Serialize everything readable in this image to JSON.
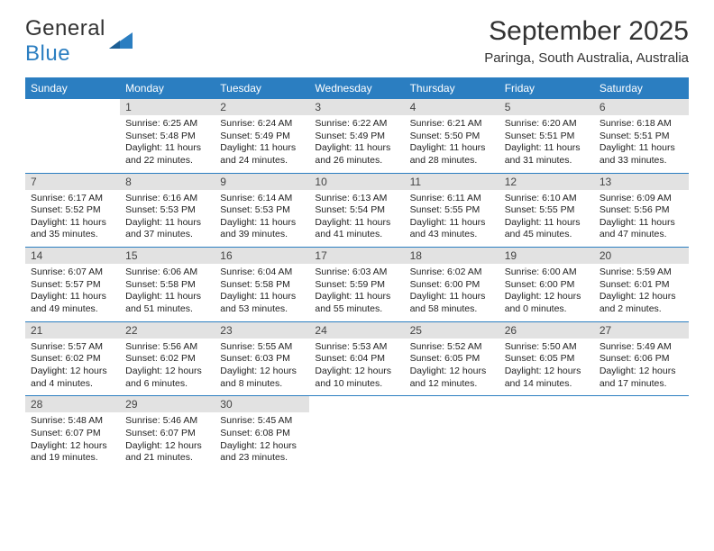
{
  "logo": {
    "word1": "General",
    "word2": "Blue"
  },
  "title": "September 2025",
  "subtitle": "Paringa, South Australia, Australia",
  "colors": {
    "brand_blue": "#2b7ec1",
    "band_gray": "#e2e2e2",
    "text": "#222222",
    "title_text": "#333333"
  },
  "day_names": [
    "Sunday",
    "Monday",
    "Tuesday",
    "Wednesday",
    "Thursday",
    "Friday",
    "Saturday"
  ],
  "weeks": [
    [
      null,
      {
        "n": "1",
        "sr": "Sunrise: 6:25 AM",
        "ss": "Sunset: 5:48 PM",
        "dl1": "Daylight: 11 hours",
        "dl2": "and 22 minutes."
      },
      {
        "n": "2",
        "sr": "Sunrise: 6:24 AM",
        "ss": "Sunset: 5:49 PM",
        "dl1": "Daylight: 11 hours",
        "dl2": "and 24 minutes."
      },
      {
        "n": "3",
        "sr": "Sunrise: 6:22 AM",
        "ss": "Sunset: 5:49 PM",
        "dl1": "Daylight: 11 hours",
        "dl2": "and 26 minutes."
      },
      {
        "n": "4",
        "sr": "Sunrise: 6:21 AM",
        "ss": "Sunset: 5:50 PM",
        "dl1": "Daylight: 11 hours",
        "dl2": "and 28 minutes."
      },
      {
        "n": "5",
        "sr": "Sunrise: 6:20 AM",
        "ss": "Sunset: 5:51 PM",
        "dl1": "Daylight: 11 hours",
        "dl2": "and 31 minutes."
      },
      {
        "n": "6",
        "sr": "Sunrise: 6:18 AM",
        "ss": "Sunset: 5:51 PM",
        "dl1": "Daylight: 11 hours",
        "dl2": "and 33 minutes."
      }
    ],
    [
      {
        "n": "7",
        "sr": "Sunrise: 6:17 AM",
        "ss": "Sunset: 5:52 PM",
        "dl1": "Daylight: 11 hours",
        "dl2": "and 35 minutes."
      },
      {
        "n": "8",
        "sr": "Sunrise: 6:16 AM",
        "ss": "Sunset: 5:53 PM",
        "dl1": "Daylight: 11 hours",
        "dl2": "and 37 minutes."
      },
      {
        "n": "9",
        "sr": "Sunrise: 6:14 AM",
        "ss": "Sunset: 5:53 PM",
        "dl1": "Daylight: 11 hours",
        "dl2": "and 39 minutes."
      },
      {
        "n": "10",
        "sr": "Sunrise: 6:13 AM",
        "ss": "Sunset: 5:54 PM",
        "dl1": "Daylight: 11 hours",
        "dl2": "and 41 minutes."
      },
      {
        "n": "11",
        "sr": "Sunrise: 6:11 AM",
        "ss": "Sunset: 5:55 PM",
        "dl1": "Daylight: 11 hours",
        "dl2": "and 43 minutes."
      },
      {
        "n": "12",
        "sr": "Sunrise: 6:10 AM",
        "ss": "Sunset: 5:55 PM",
        "dl1": "Daylight: 11 hours",
        "dl2": "and 45 minutes."
      },
      {
        "n": "13",
        "sr": "Sunrise: 6:09 AM",
        "ss": "Sunset: 5:56 PM",
        "dl1": "Daylight: 11 hours",
        "dl2": "and 47 minutes."
      }
    ],
    [
      {
        "n": "14",
        "sr": "Sunrise: 6:07 AM",
        "ss": "Sunset: 5:57 PM",
        "dl1": "Daylight: 11 hours",
        "dl2": "and 49 minutes."
      },
      {
        "n": "15",
        "sr": "Sunrise: 6:06 AM",
        "ss": "Sunset: 5:58 PM",
        "dl1": "Daylight: 11 hours",
        "dl2": "and 51 minutes."
      },
      {
        "n": "16",
        "sr": "Sunrise: 6:04 AM",
        "ss": "Sunset: 5:58 PM",
        "dl1": "Daylight: 11 hours",
        "dl2": "and 53 minutes."
      },
      {
        "n": "17",
        "sr": "Sunrise: 6:03 AM",
        "ss": "Sunset: 5:59 PM",
        "dl1": "Daylight: 11 hours",
        "dl2": "and 55 minutes."
      },
      {
        "n": "18",
        "sr": "Sunrise: 6:02 AM",
        "ss": "Sunset: 6:00 PM",
        "dl1": "Daylight: 11 hours",
        "dl2": "and 58 minutes."
      },
      {
        "n": "19",
        "sr": "Sunrise: 6:00 AM",
        "ss": "Sunset: 6:00 PM",
        "dl1": "Daylight: 12 hours",
        "dl2": "and 0 minutes."
      },
      {
        "n": "20",
        "sr": "Sunrise: 5:59 AM",
        "ss": "Sunset: 6:01 PM",
        "dl1": "Daylight: 12 hours",
        "dl2": "and 2 minutes."
      }
    ],
    [
      {
        "n": "21",
        "sr": "Sunrise: 5:57 AM",
        "ss": "Sunset: 6:02 PM",
        "dl1": "Daylight: 12 hours",
        "dl2": "and 4 minutes."
      },
      {
        "n": "22",
        "sr": "Sunrise: 5:56 AM",
        "ss": "Sunset: 6:02 PM",
        "dl1": "Daylight: 12 hours",
        "dl2": "and 6 minutes."
      },
      {
        "n": "23",
        "sr": "Sunrise: 5:55 AM",
        "ss": "Sunset: 6:03 PM",
        "dl1": "Daylight: 12 hours",
        "dl2": "and 8 minutes."
      },
      {
        "n": "24",
        "sr": "Sunrise: 5:53 AM",
        "ss": "Sunset: 6:04 PM",
        "dl1": "Daylight: 12 hours",
        "dl2": "and 10 minutes."
      },
      {
        "n": "25",
        "sr": "Sunrise: 5:52 AM",
        "ss": "Sunset: 6:05 PM",
        "dl1": "Daylight: 12 hours",
        "dl2": "and 12 minutes."
      },
      {
        "n": "26",
        "sr": "Sunrise: 5:50 AM",
        "ss": "Sunset: 6:05 PM",
        "dl1": "Daylight: 12 hours",
        "dl2": "and 14 minutes."
      },
      {
        "n": "27",
        "sr": "Sunrise: 5:49 AM",
        "ss": "Sunset: 6:06 PM",
        "dl1": "Daylight: 12 hours",
        "dl2": "and 17 minutes."
      }
    ],
    [
      {
        "n": "28",
        "sr": "Sunrise: 5:48 AM",
        "ss": "Sunset: 6:07 PM",
        "dl1": "Daylight: 12 hours",
        "dl2": "and 19 minutes."
      },
      {
        "n": "29",
        "sr": "Sunrise: 5:46 AM",
        "ss": "Sunset: 6:07 PM",
        "dl1": "Daylight: 12 hours",
        "dl2": "and 21 minutes."
      },
      {
        "n": "30",
        "sr": "Sunrise: 5:45 AM",
        "ss": "Sunset: 6:08 PM",
        "dl1": "Daylight: 12 hours",
        "dl2": "and 23 minutes."
      },
      null,
      null,
      null,
      null
    ]
  ]
}
